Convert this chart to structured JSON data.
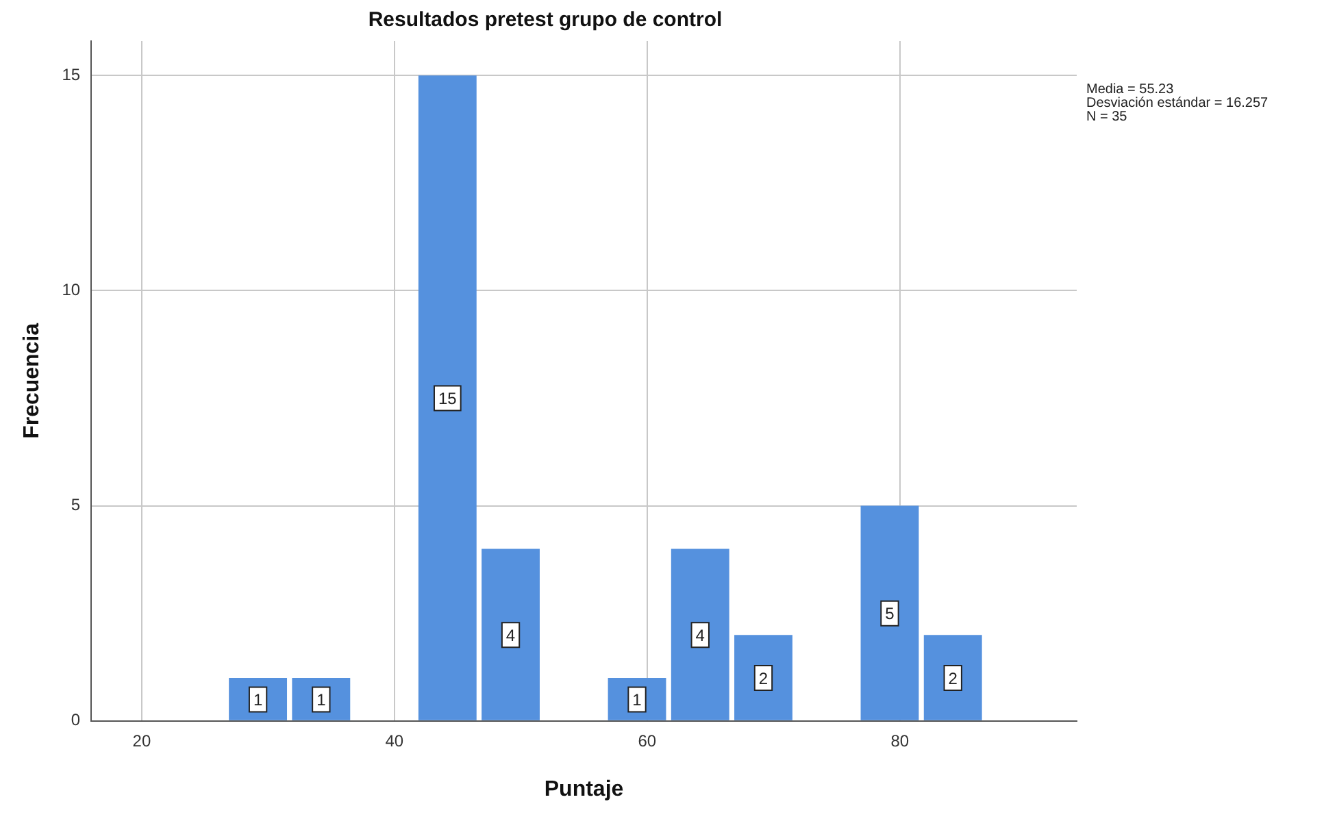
{
  "chart_data": {
    "type": "histogram",
    "title": "Resultados pretest grupo de control",
    "xlabel": "Puntaje",
    "ylabel": "Frecuencia",
    "bins": [
      26.7,
      31.7,
      36.7,
      41.7,
      46.7,
      51.7,
      56.7,
      61.7,
      66.7,
      71.7,
      76.7,
      81.7,
      86.7
    ],
    "values": [
      1,
      1,
      0,
      15,
      4,
      0,
      1,
      4,
      2,
      0,
      5,
      2
    ],
    "color": "#5591de",
    "xlim": [
      16,
      94
    ],
    "xticks": [
      20,
      40,
      60,
      80
    ],
    "ylim": [
      0,
      15.8
    ],
    "yticks": [
      0,
      5,
      10,
      15
    ],
    "grid": true,
    "value_labels": [
      "1",
      "1",
      null,
      "15",
      "4",
      null,
      "1",
      "4",
      "2",
      null,
      "5",
      "2"
    ],
    "legend": false,
    "annotations": [
      "Media = 55.23",
      "Desviación estándar = 16.257",
      "N = 35"
    ]
  }
}
